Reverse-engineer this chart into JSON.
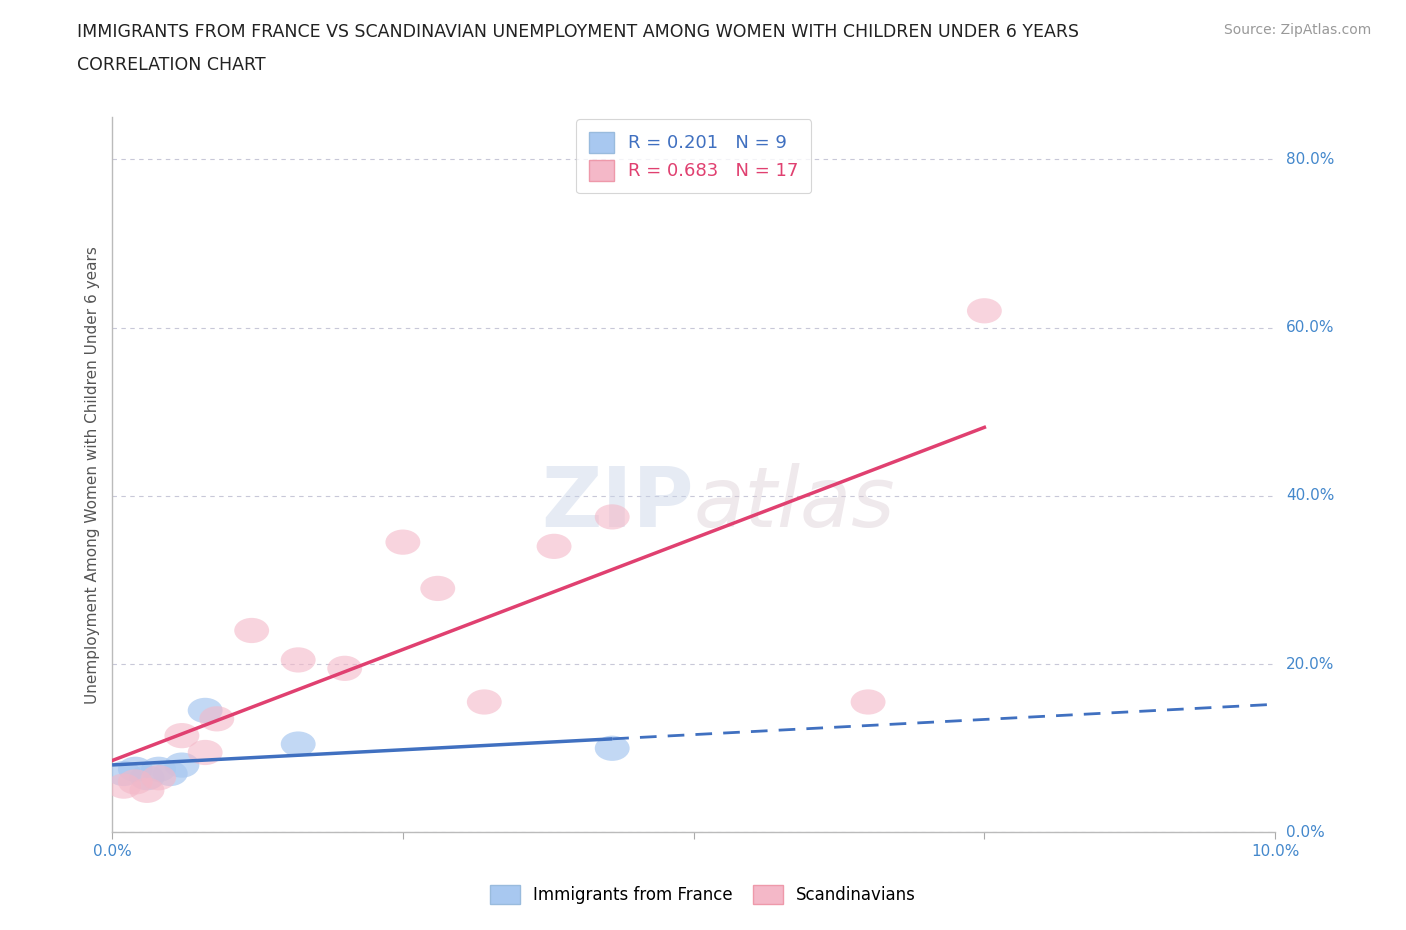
{
  "title_line1": "IMMIGRANTS FROM FRANCE VS SCANDINAVIAN UNEMPLOYMENT AMONG WOMEN WITH CHILDREN UNDER 6 YEARS",
  "title_line2": "CORRELATION CHART",
  "source_text": "Source: ZipAtlas.com",
  "ylabel": "Unemployment Among Women with Children Under 6 years",
  "xlim": [
    0.0,
    0.1
  ],
  "ylim": [
    0.0,
    0.85
  ],
  "yticks": [
    0.0,
    0.2,
    0.4,
    0.6,
    0.8
  ],
  "ytick_labels": [
    "0.0%",
    "20.0%",
    "40.0%",
    "60.0%",
    "80.0%"
  ],
  "xtick_labels": [
    "0.0%",
    "",
    "",
    "",
    "10.0%"
  ],
  "xticks": [
    0.0,
    0.025,
    0.05,
    0.075,
    0.1
  ],
  "blue_scatter_x": [
    0.001,
    0.002,
    0.003,
    0.004,
    0.005,
    0.006,
    0.008,
    0.016,
    0.043
  ],
  "blue_scatter_y": [
    0.07,
    0.075,
    0.065,
    0.075,
    0.07,
    0.08,
    0.145,
    0.105,
    0.1
  ],
  "pink_scatter_x": [
    0.001,
    0.002,
    0.003,
    0.004,
    0.006,
    0.008,
    0.009,
    0.012,
    0.016,
    0.02,
    0.025,
    0.028,
    0.032,
    0.038,
    0.043,
    0.065,
    0.075
  ],
  "pink_scatter_y": [
    0.055,
    0.06,
    0.05,
    0.065,
    0.115,
    0.095,
    0.135,
    0.24,
    0.205,
    0.195,
    0.345,
    0.29,
    0.155,
    0.34,
    0.375,
    0.155,
    0.62
  ],
  "blue_color": "#A8C8F0",
  "pink_color": "#F4B8C8",
  "blue_line_color": "#4070C0",
  "pink_line_color": "#E04070",
  "R_blue": 0.201,
  "N_blue": 9,
  "R_pink": 0.683,
  "N_pink": 17,
  "watermark_zip": "ZIP",
  "watermark_atlas": "atlas",
  "background_color": "#FFFFFF",
  "grid_color": "#C8C8D8"
}
